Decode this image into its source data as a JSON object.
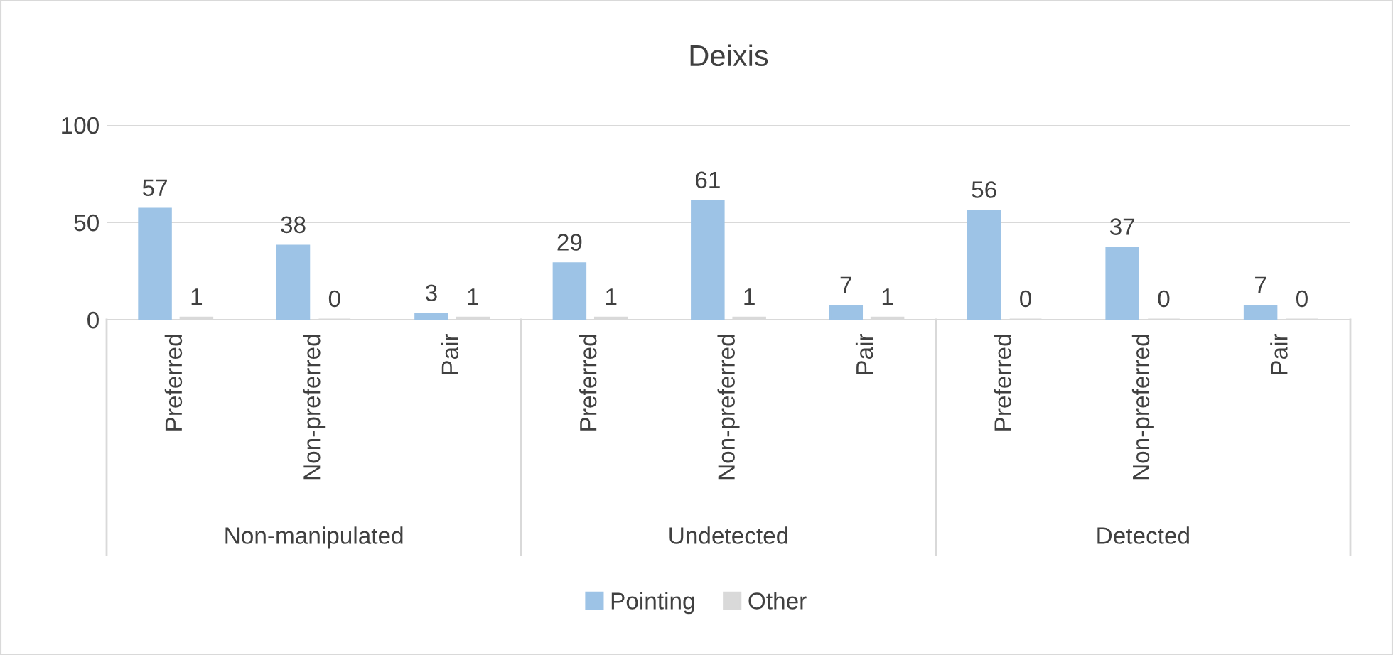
{
  "chart_data": {
    "type": "bar",
    "title": "Deixis",
    "categories": [
      "Preferred",
      "Non-preferred",
      "Pair",
      "Preferred",
      "Non-preferred",
      "Pair",
      "Preferred",
      "Non-preferred",
      "Pair"
    ],
    "series": [
      {
        "name": "Pointing",
        "color": "#9dc3e6",
        "values": [
          57,
          38,
          3,
          29,
          61,
          7,
          56,
          37,
          7
        ]
      },
      {
        "name": "Other",
        "color": "#d9d9d9",
        "values": [
          1,
          0,
          1,
          1,
          1,
          1,
          0,
          0,
          0
        ]
      }
    ],
    "annotations": [
      "Non-manipulated",
      "Undetected",
      "Detected"
    ],
    "ylim": [
      0,
      100
    ],
    "yticks": [
      0,
      50,
      100
    ],
    "grid": "y",
    "data_labels": true,
    "legend": "bottom"
  }
}
